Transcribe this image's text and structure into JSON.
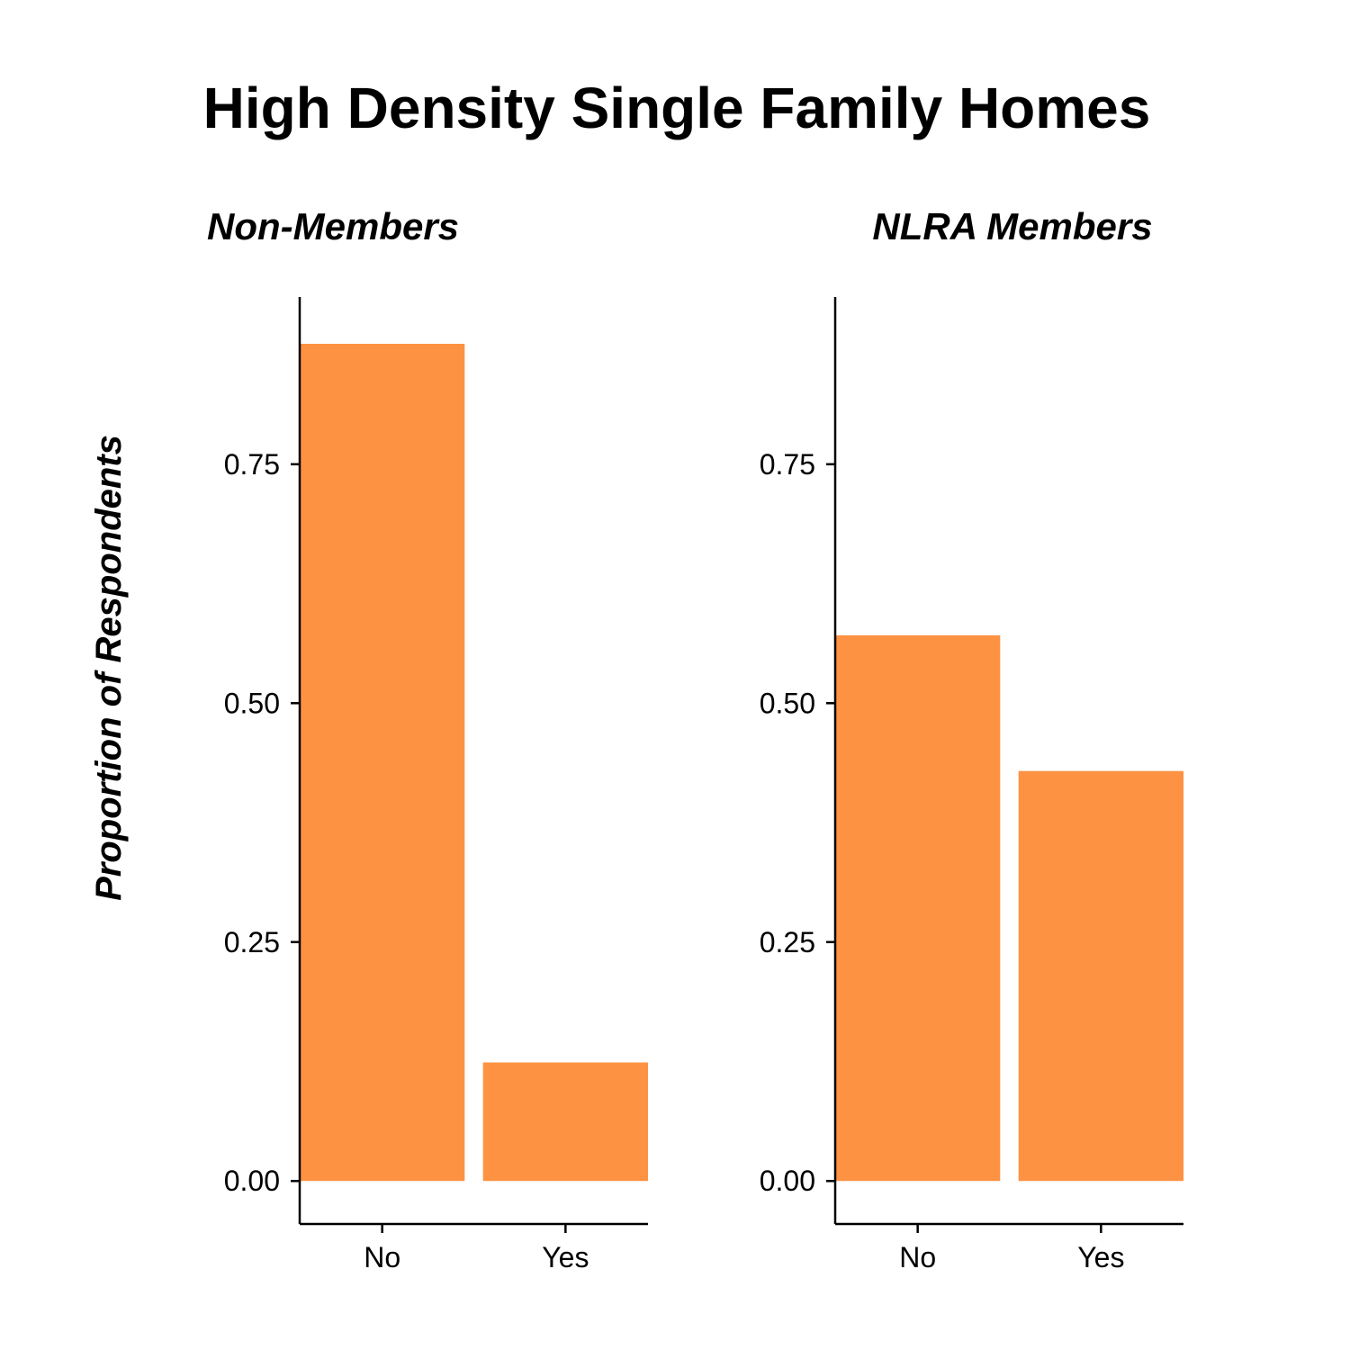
{
  "chart_data": {
    "type": "bar",
    "title": "High Density Single Family Homes",
    "ylabel": "Proportion of Respondents",
    "xlabel": "",
    "bar_color": "#FD9242",
    "ylim": [
      -0.045,
      0.925
    ],
    "yticks": [
      {
        "value": 0.0,
        "label": "0.00"
      },
      {
        "value": 0.25,
        "label": "0.25"
      },
      {
        "value": 0.5,
        "label": "0.50"
      },
      {
        "value": 0.75,
        "label": "0.75"
      }
    ],
    "categories": [
      "No",
      "Yes"
    ],
    "panels": [
      {
        "title": "Non-Members",
        "values": [
          0.876,
          0.124
        ]
      },
      {
        "title": "NLRA Members",
        "values": [
          0.571,
          0.429
        ]
      }
    ]
  }
}
